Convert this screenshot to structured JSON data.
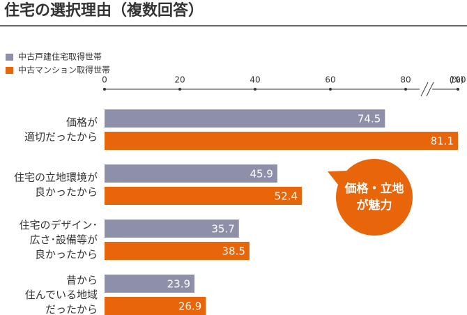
{
  "chart_data": {
    "type": "bar",
    "orientation": "horizontal",
    "title": "住宅の選択理由（複数回答）",
    "axis_unit": "(%)",
    "categories": [
      "価格が\n適切だったから",
      "住宅の立地環境が\n良かったから",
      "住宅のデザイン･\n広さ･設備等が\n良かったから",
      "昔から\n住んでいる地域\nだったから"
    ],
    "series": [
      {
        "name": "中古戸建住宅取得世帯",
        "color": "#8e8fa8",
        "values": [
          74.5,
          45.9,
          35.7,
          23.9
        ]
      },
      {
        "name": "中古マンション取得世帯",
        "color": "#e8650a",
        "values": [
          81.1,
          52.4,
          38.5,
          26.9
        ]
      }
    ],
    "xlim": [
      0,
      100
    ],
    "xticks": [
      0,
      20,
      40,
      60,
      80,
      100
    ],
    "axis_break": true,
    "annotation": "価格・立地\nが魅力",
    "annotation_color": "#e8650a"
  }
}
